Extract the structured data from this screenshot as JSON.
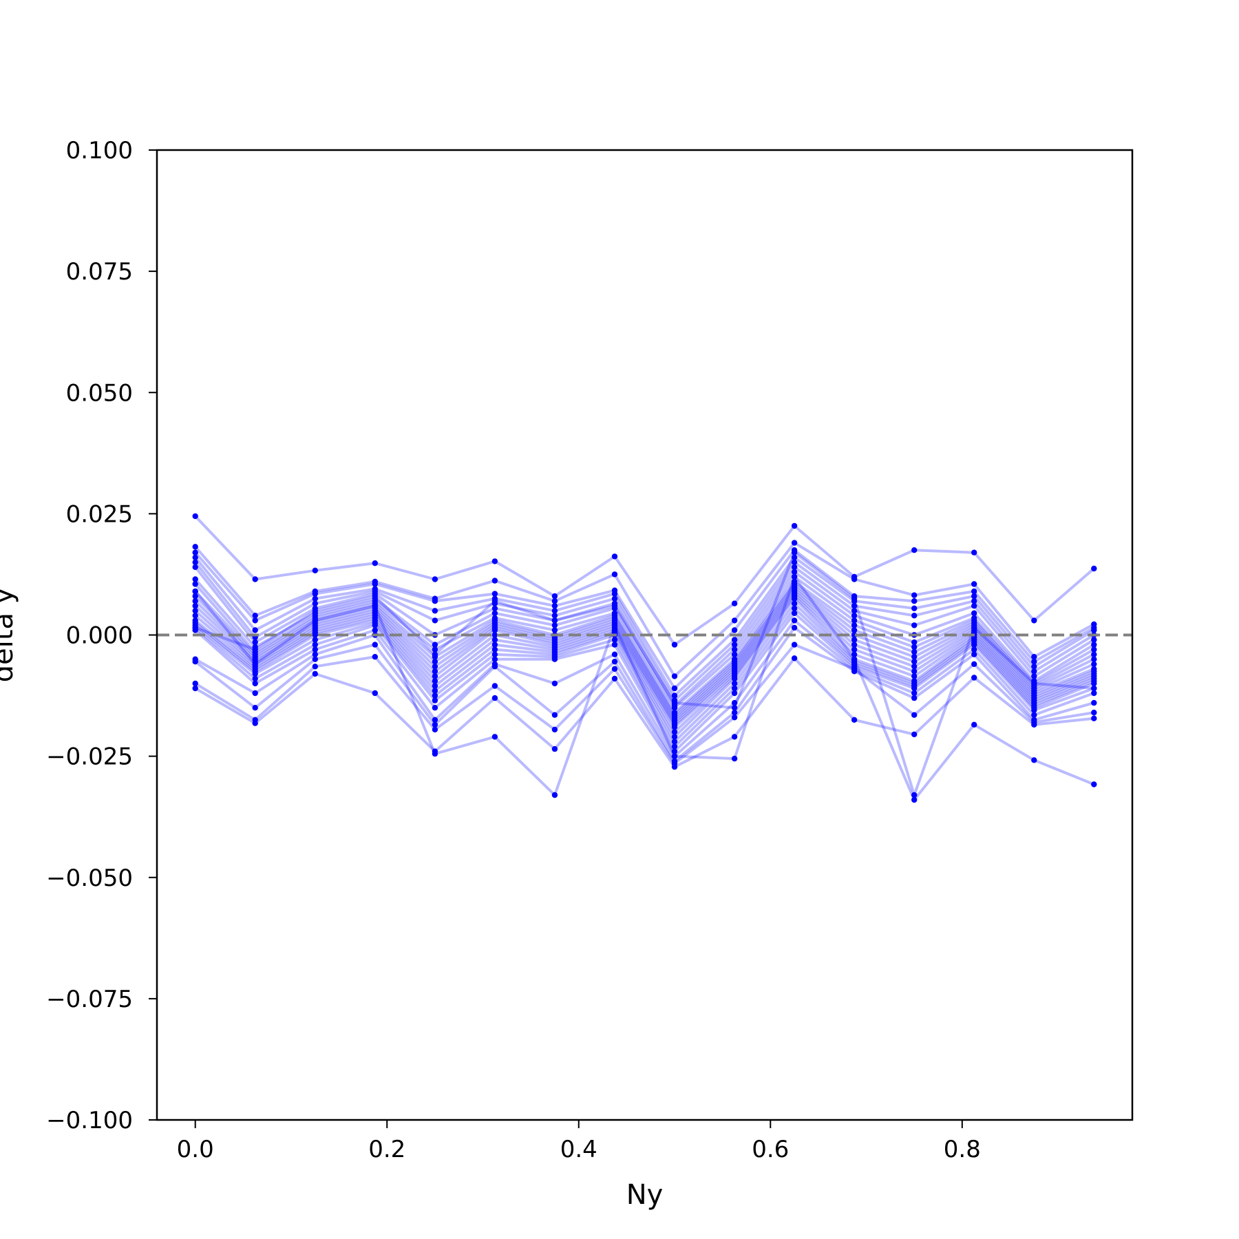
{
  "chart_data": {
    "type": "line",
    "title": "",
    "xlabel": "Ny",
    "ylabel": "delta y",
    "xlim": [
      -0.04,
      0.9775
    ],
    "ylim": [
      -0.1,
      0.1
    ],
    "x_ticks": [
      {
        "value": 0.0,
        "label": "0.0"
      },
      {
        "value": 0.2,
        "label": "0.2"
      },
      {
        "value": 0.4,
        "label": "0.4"
      },
      {
        "value": 0.6,
        "label": "0.6"
      },
      {
        "value": 0.8,
        "label": "0.8"
      }
    ],
    "y_ticks": [
      {
        "value": 0.1,
        "label": "0.100"
      },
      {
        "value": 0.075,
        "label": "0.075"
      },
      {
        "value": 0.05,
        "label": "0.050"
      },
      {
        "value": 0.025,
        "label": "0.025"
      },
      {
        "value": 0.0,
        "label": "0.000"
      },
      {
        "value": -0.025,
        "label": "−0.025"
      },
      {
        "value": -0.05,
        "label": "−0.050"
      },
      {
        "value": -0.075,
        "label": "−0.075"
      },
      {
        "value": -0.1,
        "label": "−0.100"
      }
    ],
    "reference_line": {
      "y": 0.0,
      "style": "dashed",
      "color": "#808080"
    },
    "line_color": "#0000ff",
    "marker_color": "#0000ff",
    "grid": false,
    "x": [
      0.0,
      0.0625,
      0.125,
      0.1875,
      0.25,
      0.3125,
      0.375,
      0.4375,
      0.5,
      0.5625,
      0.625,
      0.6875,
      0.75,
      0.8125,
      0.875,
      0.9375
    ],
    "series": [
      {
        "values": [
          0.0245,
          0.0115,
          0.0133,
          0.0148,
          0.0115,
          0.0152,
          0.008,
          0.0162,
          -0.002,
          0.0065,
          0.0225,
          0.012,
          0.0175,
          0.017,
          0.003,
          0.0137
        ]
      },
      {
        "values": [
          0.0182,
          0.004,
          0.009,
          0.011,
          0.0075,
          0.0112,
          0.007,
          0.0125,
          -0.0085,
          0.003,
          0.019,
          0.0115,
          0.0082,
          0.0105,
          -0.0045,
          0.0022
        ]
      },
      {
        "values": [
          0.017,
          0.003,
          0.0085,
          0.0105,
          0.007,
          0.0085,
          0.006,
          0.0092,
          -0.011,
          0.001,
          0.0175,
          0.008,
          0.007,
          0.009,
          -0.0055,
          0.0015
        ]
      },
      {
        "values": [
          0.016,
          0.001,
          0.0075,
          0.0095,
          0.005,
          0.0075,
          0.005,
          0.0085,
          -0.0125,
          -0.001,
          0.016,
          0.007,
          0.0055,
          0.008,
          -0.0065,
          0.001
        ]
      },
      {
        "values": [
          0.015,
          -0.0005,
          0.0065,
          0.009,
          0.003,
          0.0065,
          0.004,
          0.0075,
          -0.0135,
          -0.002,
          0.015,
          0.006,
          0.004,
          0.007,
          -0.0075,
          0.0
        ]
      },
      {
        "values": [
          0.014,
          -0.0015,
          0.0055,
          0.0085,
          0.0,
          0.0055,
          0.003,
          0.0065,
          -0.0145,
          -0.003,
          0.014,
          0.005,
          0.002,
          0.006,
          -0.0085,
          -0.001
        ]
      },
      {
        "values": [
          0.0115,
          -0.0025,
          0.0045,
          0.0075,
          -0.002,
          0.0045,
          0.002,
          0.0055,
          -0.015,
          -0.004,
          0.013,
          0.004,
          0.0,
          0.0045,
          -0.0095,
          -0.002
        ]
      },
      {
        "values": [
          0.0105,
          -0.0035,
          0.004,
          0.007,
          -0.003,
          0.0035,
          0.001,
          0.0045,
          -0.016,
          -0.005,
          0.012,
          0.003,
          -0.0015,
          0.0035,
          -0.01,
          -0.003
        ]
      },
      {
        "values": [
          0.009,
          -0.004,
          0.0035,
          0.0065,
          -0.0045,
          0.003,
          0.0,
          0.004,
          -0.0165,
          -0.0055,
          0.011,
          0.002,
          -0.0025,
          0.003,
          -0.0105,
          -0.004
        ]
      },
      {
        "values": [
          0.008,
          -0.0045,
          0.003,
          0.006,
          -0.0055,
          0.0025,
          -0.0005,
          0.0035,
          -0.017,
          -0.006,
          0.0105,
          0.001,
          -0.0035,
          0.0025,
          -0.011,
          -0.005
        ]
      },
      {
        "values": [
          0.007,
          -0.005,
          0.0025,
          0.0055,
          -0.0065,
          0.002,
          -0.001,
          0.003,
          -0.0175,
          -0.0065,
          0.01,
          0.0,
          -0.0045,
          0.002,
          -0.0115,
          -0.006
        ]
      },
      {
        "values": [
          0.006,
          -0.0055,
          0.002,
          0.005,
          -0.0075,
          0.0015,
          -0.0015,
          0.0025,
          -0.018,
          -0.007,
          0.0095,
          -0.001,
          -0.0055,
          0.0015,
          -0.012,
          -0.007
        ]
      },
      {
        "values": [
          0.005,
          -0.006,
          0.0015,
          0.0045,
          -0.0085,
          0.001,
          -0.002,
          0.002,
          -0.0185,
          -0.0075,
          0.009,
          -0.002,
          -0.0065,
          0.001,
          -0.0125,
          -0.0075
        ]
      },
      {
        "values": [
          0.004,
          -0.0065,
          0.001,
          0.004,
          -0.0095,
          0.0,
          -0.0025,
          0.0015,
          -0.019,
          -0.008,
          0.0085,
          -0.003,
          -0.0075,
          0.0005,
          -0.013,
          -0.008
        ]
      },
      {
        "values": [
          0.003,
          -0.007,
          0.0005,
          0.0035,
          -0.0105,
          -0.001,
          -0.003,
          0.001,
          -0.02,
          -0.0085,
          0.008,
          -0.004,
          -0.0085,
          0.0,
          -0.0135,
          -0.0085
        ]
      },
      {
        "values": [
          0.0025,
          -0.0075,
          0.0,
          0.003,
          -0.0115,
          -0.002,
          -0.0035,
          0.0005,
          -0.021,
          -0.009,
          0.0075,
          -0.005,
          -0.0095,
          -0.0005,
          -0.014,
          -0.009
        ]
      },
      {
        "values": [
          0.002,
          -0.008,
          -0.001,
          0.0025,
          -0.0125,
          -0.003,
          -0.004,
          0.0,
          -0.022,
          -0.01,
          0.0065,
          -0.0055,
          -0.01,
          -0.001,
          -0.0145,
          -0.0095
        ]
      },
      {
        "values": [
          0.0015,
          -0.009,
          -0.002,
          0.002,
          -0.0135,
          -0.004,
          -0.0045,
          -0.001,
          -0.023,
          -0.011,
          0.0055,
          -0.006,
          -0.0105,
          -0.0015,
          -0.015,
          -0.01
        ]
      },
      {
        "values": [
          0.001,
          -0.01,
          -0.003,
          0.001,
          -0.015,
          -0.005,
          -0.005,
          -0.002,
          -0.024,
          -0.012,
          0.0045,
          -0.0065,
          -0.011,
          -0.002,
          -0.0155,
          -0.011
        ]
      },
      {
        "values": [
          -0.005,
          -0.012,
          -0.004,
          0.0,
          -0.0175,
          -0.006,
          -0.01,
          -0.004,
          -0.025,
          -0.014,
          0.003,
          -0.007,
          -0.012,
          -0.003,
          -0.0165,
          -0.012
        ]
      },
      {
        "values": [
          -0.0055,
          -0.015,
          -0.005,
          -0.002,
          -0.0185,
          -0.0065,
          -0.0165,
          -0.0055,
          -0.026,
          -0.016,
          0.0015,
          -0.0075,
          -0.013,
          -0.004,
          -0.0175,
          -0.014
        ]
      },
      {
        "values": [
          -0.01,
          -0.0175,
          -0.0065,
          -0.0045,
          -0.0195,
          -0.0105,
          -0.0195,
          -0.007,
          -0.0265,
          -0.017,
          -0.002,
          -0.007,
          -0.0165,
          -0.006,
          -0.018,
          -0.016
        ]
      },
      {
        "values": [
          -0.011,
          -0.0182,
          -0.008,
          -0.012,
          -0.024,
          -0.013,
          -0.0235,
          -0.009,
          -0.0272,
          -0.021,
          -0.0048,
          -0.0175,
          -0.0205,
          -0.0088,
          -0.0185,
          -0.0172
        ]
      },
      {
        "values": [
          0.009,
          -0.006,
          0.003,
          0.006,
          -0.0245,
          -0.021,
          -0.033,
          0.002,
          -0.025,
          -0.0255,
          0.012,
          -0.005,
          -0.034,
          -0.0185,
          -0.0258,
          -0.0308
        ]
      },
      {
        "values": [
          0.0015,
          -0.003,
          0.005,
          0.008,
          -0.004,
          0.007,
          0.003,
          0.006,
          -0.014,
          -0.015,
          0.017,
          0.0075,
          -0.033,
          0.0015,
          -0.01,
          -0.011
        ]
      }
    ]
  }
}
